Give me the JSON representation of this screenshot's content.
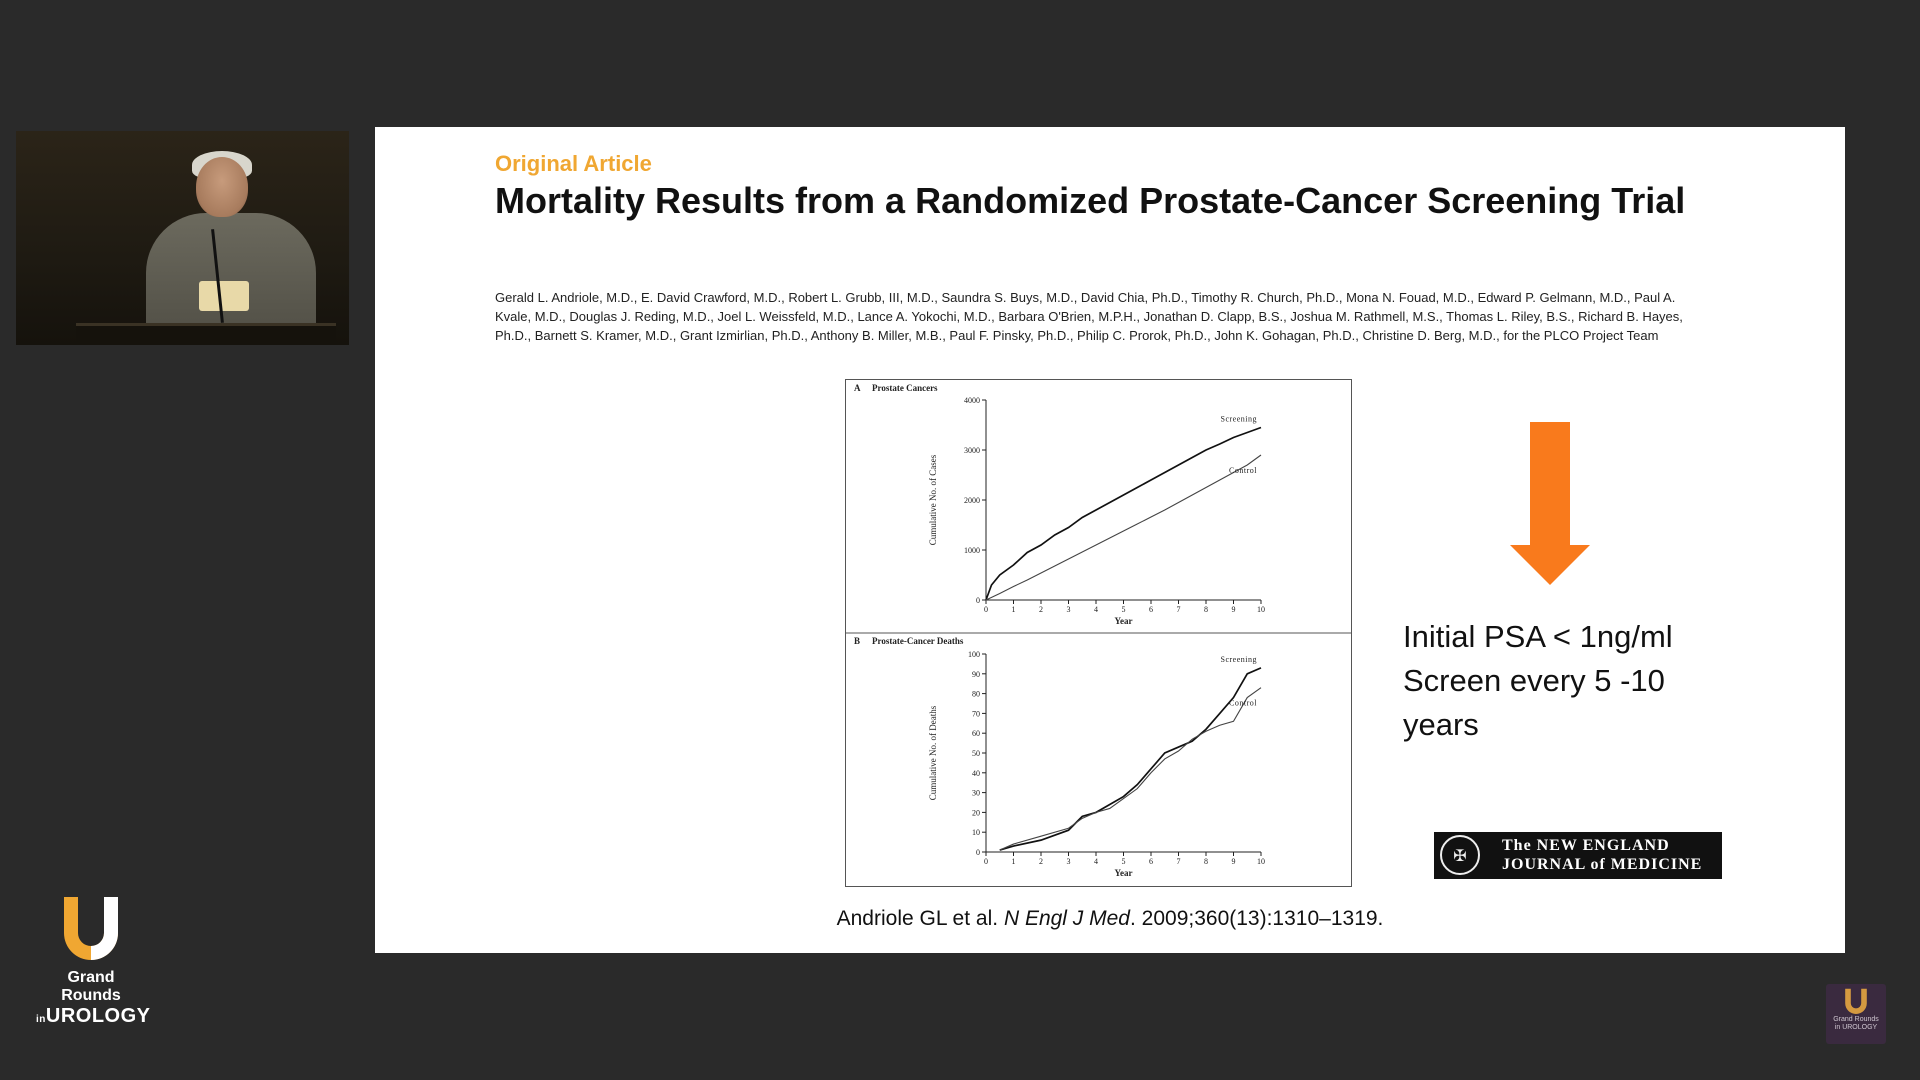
{
  "slide": {
    "tag": "Original Article",
    "title": "Mortality Results from a Randomized Prostate-Cancer Screening Trial",
    "authors": "Gerald L. Andriole, M.D., E. David Crawford, M.D., Robert L. Grubb, III, M.D., Saundra S. Buys, M.D., David Chia, Ph.D., Timothy R. Church, Ph.D., Mona N. Fouad, M.D., Edward P. Gelmann, M.D., Paul A. Kvale, M.D., Douglas J. Reding, M.D., Joel L. Weissfeld, M.D., Lance A. Yokochi, M.D., Barbara O'Brien, M.P.H., Jonathan D. Clapp, B.S., Joshua M. Rathmell, M.S., Thomas L. Riley, B.S., Richard B. Hayes, Ph.D., Barnett S. Kramer, M.D., Grant Izmirlian, Ph.D., Anthony B. Miller, M.B., Paul F. Pinsky, Ph.D., Philip C. Prorok, Ph.D., John K. Gohagan, Ph.D., Christine D. Berg, M.D., for the PLCO Project Team",
    "psa_note": {
      "line1": "Initial PSA < 1ng/ml",
      "line2": "Screen every 5 -10",
      "line3": "years"
    },
    "journal_logo": {
      "line1": "The NEW ENGLAND",
      "line2": "JOURNAL of MEDICINE"
    },
    "citation": {
      "pre": "Andriole GL et al. ",
      "journal": "N Engl J Med",
      "post": ". 2009;360(13):1310–1319."
    },
    "arrow_color": "#f97a1c"
  },
  "branding": {
    "line1": "Grand Rounds",
    "line2_small": "in",
    "line2": "UROLOGY",
    "corner_line1": "Grand Rounds",
    "corner_line2": "in UROLOGY",
    "accent": "#f0a732"
  },
  "chart_data": [
    {
      "type": "line",
      "panel": "A",
      "title": "Prostate Cancers",
      "xlabel": "Year",
      "ylabel": "Cumulative No. of Cases",
      "xlim": [
        0,
        10
      ],
      "ylim": [
        0,
        4000
      ],
      "xticks": [
        0,
        1,
        2,
        3,
        4,
        5,
        6,
        7,
        8,
        9,
        10
      ],
      "yticks": [
        0,
        1000,
        2000,
        3000,
        4000
      ],
      "series": [
        {
          "name": "Screening",
          "x": [
            0,
            0.2,
            0.5,
            1,
            1.5,
            2,
            2.5,
            3,
            3.5,
            4,
            4.5,
            5,
            5.5,
            6,
            6.5,
            7,
            7.5,
            8,
            8.5,
            9,
            9.5,
            10
          ],
          "y": [
            0,
            300,
            500,
            700,
            950,
            1100,
            1300,
            1450,
            1650,
            1800,
            1950,
            2100,
            2250,
            2400,
            2550,
            2700,
            2850,
            3000,
            3120,
            3250,
            3350,
            3450
          ]
        },
        {
          "name": "Control",
          "x": [
            0,
            0.5,
            1,
            1.5,
            2,
            2.5,
            3,
            3.5,
            4,
            4.5,
            5,
            5.5,
            6,
            6.5,
            7,
            7.5,
            8,
            8.5,
            9,
            9.5,
            10
          ],
          "y": [
            0,
            130,
            270,
            400,
            540,
            680,
            820,
            960,
            1100,
            1240,
            1380,
            1520,
            1660,
            1800,
            1950,
            2100,
            2250,
            2400,
            2550,
            2700,
            2900
          ]
        }
      ]
    },
    {
      "type": "line",
      "panel": "B",
      "title": "Prostate-Cancer Deaths",
      "xlabel": "Year",
      "ylabel": "Cumulative No. of Deaths",
      "xlim": [
        0,
        10
      ],
      "ylim": [
        0,
        100
      ],
      "xticks": [
        0,
        1,
        2,
        3,
        4,
        5,
        6,
        7,
        8,
        9,
        10
      ],
      "yticks": [
        0,
        10,
        20,
        30,
        40,
        50,
        60,
        70,
        80,
        90,
        100
      ],
      "series": [
        {
          "name": "Screening",
          "x": [
            0.5,
            1,
            2,
            3,
            3.5,
            4,
            4.5,
            5,
            5.5,
            6,
            6.5,
            7,
            7.5,
            8,
            8.5,
            9,
            9.5,
            10
          ],
          "y": [
            1,
            3,
            6,
            11,
            18,
            20,
            24,
            28,
            34,
            42,
            50,
            53,
            56,
            62,
            70,
            78,
            90,
            93
          ]
        },
        {
          "name": "Control",
          "x": [
            0.5,
            1,
            2,
            3,
            3.5,
            4,
            4.5,
            5,
            5.5,
            6,
            6.5,
            7,
            7.5,
            8,
            8.5,
            9,
            9.5,
            10
          ],
          "y": [
            1,
            4,
            8,
            12,
            17,
            20,
            22,
            27,
            32,
            40,
            47,
            51,
            57,
            61,
            64,
            66,
            78,
            83
          ]
        }
      ]
    }
  ]
}
